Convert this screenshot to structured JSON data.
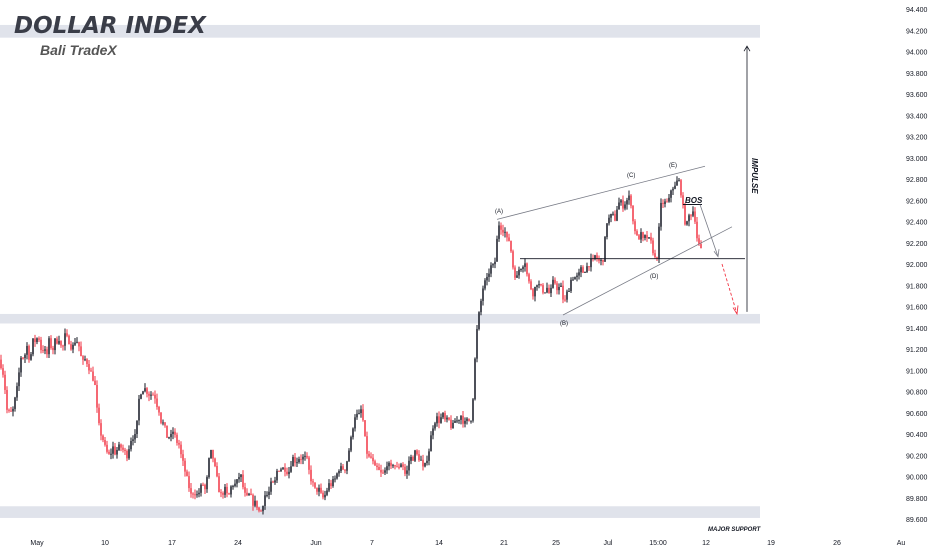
{
  "header": {
    "title": "DOLLAR INDEX",
    "subtitle": "Bali TradeX"
  },
  "colors": {
    "up": "#131722",
    "down": "#f23645",
    "zone": "#e0e3eb",
    "line": "#787b86",
    "text": "#131722",
    "projection": "#f23645"
  },
  "annotations": {
    "impulse": "IMPULSE",
    "bos": "BOS",
    "major_support": "MAJOR SUPPORT",
    "wave_a": "(A)",
    "wave_b": "(B)",
    "wave_c": "(C)",
    "wave_d": "(D)",
    "wave_e": "(E)"
  },
  "chart_data": {
    "type": "candlestick",
    "interval": "hourly",
    "ylim": [
      89.5,
      94.45
    ],
    "y_ticks": [
      "94.400",
      "94.200",
      "94.000",
      "93.800",
      "93.600",
      "93.400",
      "93.200",
      "93.000",
      "92.800",
      "92.600",
      "92.400",
      "92.200",
      "92.000",
      "91.800",
      "91.600",
      "91.400",
      "91.200",
      "91.000",
      "90.800",
      "90.600",
      "90.400",
      "90.200",
      "90.000",
      "89.800",
      "89.600"
    ],
    "x_ticks": [
      "May",
      "10",
      "17",
      "24",
      "Jun",
      "7",
      "14",
      "21",
      "25",
      "Jul",
      "15:00",
      "12",
      "19",
      "26",
      "Au"
    ],
    "zones": [
      {
        "name": "top-resistance",
        "from": 94.13,
        "to": 94.25
      },
      {
        "name": "mid-zone",
        "from": 91.44,
        "to": 91.53
      },
      {
        "name": "major-support",
        "from": 89.61,
        "to": 89.72
      }
    ],
    "breakout_level": 92.05,
    "impulse_range": [
      91.55,
      94.05
    ],
    "projection_target": 91.53,
    "waves": [
      {
        "label": "(A)",
        "value": 92.42
      },
      {
        "label": "(B)",
        "value": 91.52
      },
      {
        "label": "(C)",
        "value": 92.72
      },
      {
        "label": "(D)",
        "value": 92.0
      },
      {
        "label": "(E)",
        "value": 92.85
      }
    ],
    "price_path": [
      [
        0,
        91.1
      ],
      [
        2,
        91.0
      ],
      [
        4,
        90.95
      ],
      [
        6,
        90.7
      ],
      [
        8,
        90.55
      ],
      [
        10,
        90.65
      ],
      [
        12,
        90.55
      ],
      [
        14,
        90.7
      ],
      [
        16,
        90.75
      ],
      [
        18,
        90.9
      ],
      [
        20,
        91.05
      ],
      [
        22,
        91.2
      ],
      [
        24,
        91.05
      ],
      [
        26,
        91.25
      ],
      [
        28,
        91.2
      ],
      [
        30,
        91.05
      ],
      [
        32,
        91.25
      ],
      [
        34,
        91.3
      ],
      [
        36,
        91.25
      ],
      [
        38,
        91.35
      ],
      [
        40,
        91.25
      ],
      [
        42,
        91.15
      ],
      [
        44,
        91.25
      ],
      [
        46,
        91.1
      ],
      [
        48,
        91.2
      ],
      [
        50,
        91.35
      ],
      [
        52,
        91.1
      ],
      [
        54,
        91.3
      ],
      [
        56,
        91.25
      ],
      [
        58,
        91.3
      ],
      [
        60,
        91.3
      ],
      [
        62,
        91.15
      ],
      [
        64,
        91.3
      ],
      [
        66,
        91.35
      ],
      [
        68,
        91.25
      ],
      [
        70,
        91.3
      ],
      [
        72,
        91.15
      ],
      [
        74,
        91.3
      ],
      [
        76,
        91.25
      ],
      [
        78,
        91.3
      ],
      [
        80,
        91.15
      ],
      [
        82,
        91.1
      ],
      [
        84,
        91.05
      ],
      [
        86,
        91.15
      ],
      [
        88,
        91.0
      ],
      [
        90,
        91.05
      ],
      [
        92,
        90.9
      ],
      [
        94,
        90.95
      ],
      [
        96,
        90.75
      ],
      [
        98,
        90.5
      ],
      [
        100,
        90.45
      ],
      [
        102,
        90.35
      ],
      [
        104,
        90.35
      ],
      [
        106,
        90.2
      ],
      [
        108,
        90.25
      ],
      [
        110,
        90.15
      ],
      [
        112,
        90.3
      ],
      [
        114,
        90.25
      ],
      [
        116,
        90.2
      ],
      [
        118,
        90.3
      ],
      [
        120,
        90.25
      ],
      [
        122,
        90.3
      ],
      [
        124,
        90.2
      ],
      [
        126,
        90.25
      ],
      [
        128,
        90.15
      ],
      [
        130,
        90.4
      ],
      [
        132,
        90.3
      ],
      [
        134,
        90.45
      ],
      [
        136,
        90.3
      ],
      [
        138,
        90.7
      ],
      [
        140,
        90.75
      ],
      [
        142,
        90.85
      ],
      [
        144,
        90.8
      ],
      [
        146,
        90.85
      ],
      [
        148,
        90.75
      ],
      [
        150,
        90.8
      ],
      [
        152,
        90.75
      ],
      [
        154,
        90.8
      ],
      [
        156,
        90.7
      ],
      [
        158,
        90.65
      ],
      [
        160,
        90.6
      ],
      [
        162,
        90.45
      ],
      [
        164,
        90.55
      ],
      [
        166,
        90.35
      ],
      [
        168,
        90.4
      ],
      [
        170,
        90.35
      ],
      [
        172,
        90.4
      ],
      [
        174,
        90.45
      ],
      [
        176,
        90.3
      ],
      [
        178,
        90.35
      ],
      [
        180,
        90.25
      ],
      [
        182,
        90.15
      ],
      [
        184,
        90.1
      ],
      [
        186,
        90.0
      ],
      [
        188,
        89.95
      ],
      [
        190,
        89.85
      ],
      [
        192,
        89.8
      ],
      [
        194,
        89.9
      ],
      [
        196,
        89.8
      ],
      [
        198,
        89.85
      ],
      [
        200,
        89.85
      ],
      [
        202,
        89.95
      ],
      [
        204,
        89.9
      ],
      [
        206,
        89.85
      ],
      [
        208,
        90.1
      ],
      [
        210,
        90.2
      ],
      [
        212,
        90.25
      ],
      [
        214,
        90.1
      ],
      [
        216,
        90.05
      ],
      [
        218,
        89.9
      ],
      [
        220,
        89.85
      ],
      [
        222,
        89.8
      ],
      [
        224,
        89.9
      ],
      [
        226,
        89.85
      ],
      [
        228,
        89.8
      ],
      [
        230,
        89.85
      ],
      [
        232,
        89.95
      ],
      [
        234,
        89.9
      ],
      [
        236,
        89.95
      ],
      [
        238,
        89.95
      ],
      [
        240,
        90.05
      ],
      [
        242,
        89.95
      ],
      [
        244,
        89.85
      ],
      [
        246,
        89.8
      ],
      [
        248,
        89.8
      ],
      [
        250,
        89.85
      ],
      [
        252,
        89.75
      ],
      [
        254,
        89.75
      ],
      [
        256,
        89.75
      ],
      [
        258,
        89.7
      ],
      [
        260,
        89.65
      ],
      [
        262,
        89.7
      ],
      [
        264,
        89.8
      ],
      [
        266,
        89.85
      ],
      [
        268,
        89.8
      ],
      [
        270,
        89.9
      ],
      [
        272,
        89.95
      ],
      [
        274,
        89.9
      ],
      [
        276,
        90.0
      ],
      [
        278,
        90.1
      ],
      [
        280,
        90.05
      ],
      [
        282,
        90.1
      ],
      [
        284,
        90.05
      ],
      [
        286,
        90.1
      ],
      [
        288,
        90.0
      ],
      [
        290,
        90.1
      ],
      [
        292,
        90.15
      ],
      [
        294,
        90.2
      ],
      [
        296,
        90.1
      ],
      [
        298,
        90.2
      ],
      [
        300,
        90.15
      ],
      [
        302,
        90.2
      ],
      [
        304,
        90.15
      ],
      [
        306,
        90.2
      ],
      [
        308,
        90.1
      ],
      [
        310,
        90.0
      ],
      [
        312,
        89.95
      ],
      [
        314,
        89.9
      ],
      [
        316,
        89.85
      ],
      [
        318,
        89.9
      ],
      [
        320,
        89.85
      ],
      [
        322,
        89.8
      ],
      [
        324,
        89.8
      ],
      [
        326,
        89.85
      ],
      [
        328,
        89.9
      ],
      [
        330,
        89.95
      ],
      [
        332,
        89.9
      ],
      [
        334,
        90.0
      ],
      [
        336,
        89.95
      ],
      [
        338,
        90.1
      ],
      [
        340,
        90.05
      ],
      [
        342,
        90.1
      ],
      [
        344,
        90.05
      ],
      [
        346,
        90.1
      ],
      [
        348,
        90.2
      ],
      [
        350,
        90.3
      ],
      [
        352,
        90.4
      ],
      [
        354,
        90.55
      ],
      [
        356,
        90.6
      ],
      [
        358,
        90.55
      ],
      [
        360,
        90.6
      ],
      [
        362,
        90.65
      ],
      [
        364,
        90.4
      ],
      [
        366,
        90.3
      ],
      [
        368,
        90.15
      ],
      [
        370,
        90.2
      ],
      [
        372,
        90.15
      ],
      [
        374,
        90.1
      ],
      [
        376,
        90.05
      ],
      [
        378,
        90.1
      ],
      [
        380,
        90.0
      ],
      [
        382,
        90.05
      ],
      [
        384,
        90.0
      ],
      [
        386,
        90.1
      ],
      [
        388,
        90.15
      ],
      [
        390,
        90.05
      ],
      [
        392,
        90.1
      ],
      [
        394,
        90.15
      ],
      [
        396,
        90.05
      ],
      [
        398,
        90.1
      ],
      [
        400,
        90.1
      ],
      [
        402,
        90.15
      ],
      [
        404,
        90.05
      ],
      [
        406,
        90.0
      ],
      [
        408,
        90.1
      ],
      [
        410,
        90.2
      ],
      [
        412,
        90.15
      ],
      [
        414,
        90.2
      ],
      [
        416,
        90.25
      ],
      [
        418,
        90.15
      ],
      [
        420,
        90.2
      ],
      [
        422,
        90.1
      ],
      [
        424,
        90.05
      ],
      [
        426,
        90.15
      ],
      [
        428,
        90.2
      ],
      [
        430,
        90.3
      ],
      [
        432,
        90.45
      ],
      [
        434,
        90.5
      ],
      [
        436,
        90.55
      ],
      [
        438,
        90.55
      ],
      [
        440,
        90.5
      ],
      [
        442,
        90.6
      ],
      [
        444,
        90.55
      ],
      [
        446,
        90.5
      ],
      [
        448,
        90.55
      ],
      [
        450,
        90.5
      ],
      [
        452,
        90.45
      ],
      [
        454,
        90.5
      ],
      [
        456,
        90.55
      ],
      [
        458,
        90.5
      ],
      [
        460,
        90.6
      ],
      [
        462,
        90.55
      ],
      [
        464,
        90.5
      ],
      [
        466,
        90.5
      ],
      [
        468,
        90.55
      ],
      [
        470,
        90.5
      ],
      [
        472,
        90.6
      ],
      [
        474,
        90.9
      ],
      [
        476,
        91.3
      ],
      [
        478,
        91.45
      ],
      [
        480,
        91.6
      ],
      [
        482,
        91.7
      ],
      [
        484,
        91.85
      ],
      [
        486,
        91.8
      ],
      [
        488,
        91.9
      ],
      [
        490,
        91.95
      ],
      [
        492,
        92.0
      ],
      [
        494,
        91.95
      ],
      [
        496,
        92.1
      ],
      [
        498,
        92.35
      ],
      [
        500,
        92.4
      ],
      [
        502,
        92.3
      ],
      [
        504,
        92.35
      ],
      [
        506,
        92.25
      ],
      [
        508,
        92.2
      ],
      [
        510,
        92.25
      ],
      [
        512,
        92.0
      ],
      [
        514,
        91.95
      ],
      [
        516,
        91.85
      ],
      [
        518,
        91.9
      ],
      [
        520,
        92.0
      ],
      [
        522,
        91.95
      ],
      [
        524,
        92.05
      ],
      [
        526,
        92.0
      ],
      [
        528,
        91.8
      ],
      [
        530,
        91.85
      ],
      [
        532,
        91.7
      ],
      [
        534,
        91.75
      ],
      [
        536,
        91.8
      ],
      [
        538,
        91.85
      ],
      [
        540,
        91.75
      ],
      [
        542,
        91.8
      ],
      [
        544,
        91.7
      ],
      [
        546,
        91.8
      ],
      [
        548,
        91.75
      ],
      [
        550,
        91.7
      ],
      [
        552,
        91.8
      ],
      [
        554,
        91.85
      ],
      [
        556,
        91.8
      ],
      [
        558,
        91.75
      ],
      [
        560,
        91.8
      ],
      [
        562,
        91.75
      ],
      [
        564,
        91.6
      ],
      [
        566,
        91.7
      ],
      [
        568,
        91.75
      ],
      [
        570,
        91.8
      ],
      [
        572,
        91.9
      ],
      [
        574,
        91.85
      ],
      [
        576,
        91.9
      ],
      [
        578,
        91.85
      ],
      [
        580,
        91.95
      ],
      [
        582,
        91.95
      ],
      [
        584,
        91.9
      ],
      [
        586,
        92.0
      ],
      [
        588,
        91.95
      ],
      [
        590,
        92.05
      ],
      [
        592,
        92.0
      ],
      [
        594,
        92.05
      ],
      [
        596,
        92.1
      ],
      [
        598,
        92.0
      ],
      [
        600,
        92.05
      ],
      [
        602,
        92.0
      ],
      [
        604,
        92.1
      ],
      [
        606,
        92.35
      ],
      [
        608,
        92.45
      ],
      [
        610,
        92.4
      ],
      [
        612,
        92.5
      ],
      [
        614,
        92.4
      ],
      [
        616,
        92.45
      ],
      [
        618,
        92.6
      ],
      [
        620,
        92.55
      ],
      [
        622,
        92.6
      ],
      [
        624,
        92.5
      ],
      [
        626,
        92.65
      ],
      [
        628,
        92.55
      ],
      [
        630,
        92.7
      ],
      [
        632,
        92.45
      ],
      [
        634,
        92.35
      ],
      [
        636,
        92.3
      ],
      [
        638,
        92.2
      ],
      [
        640,
        92.3
      ],
      [
        642,
        92.25
      ],
      [
        644,
        92.2
      ],
      [
        646,
        92.3
      ],
      [
        648,
        92.2
      ],
      [
        650,
        92.25
      ],
      [
        652,
        92.15
      ],
      [
        654,
        92.1
      ],
      [
        656,
        92.0
      ],
      [
        658,
        92.15
      ],
      [
        660,
        92.5
      ],
      [
        662,
        92.6
      ],
      [
        664,
        92.55
      ],
      [
        666,
        92.6
      ],
      [
        668,
        92.55
      ],
      [
        670,
        92.65
      ],
      [
        672,
        92.75
      ],
      [
        674,
        92.7
      ],
      [
        676,
        92.75
      ],
      [
        678,
        92.8
      ],
      [
        680,
        92.75
      ],
      [
        682,
        92.6
      ],
      [
        684,
        92.45
      ],
      [
        686,
        92.35
      ],
      [
        688,
        92.4
      ],
      [
        690,
        92.5
      ],
      [
        692,
        92.45
      ],
      [
        694,
        92.55
      ],
      [
        696,
        92.3
      ],
      [
        698,
        92.2
      ],
      [
        700,
        92.15
      ],
      [
        702,
        92.1
      ]
    ]
  }
}
